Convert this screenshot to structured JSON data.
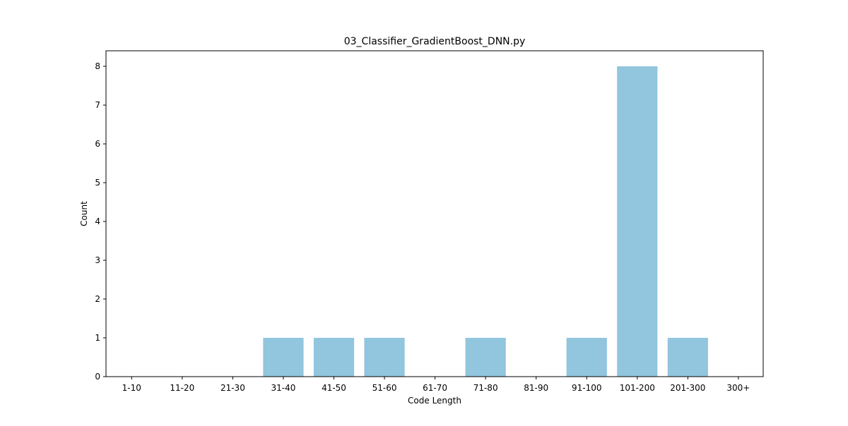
{
  "chart_data": {
    "type": "bar",
    "title": "03_Classifier_GradientBoost_DNN.py",
    "xlabel": "Code Length",
    "ylabel": "Count",
    "categories": [
      "1-10",
      "11-20",
      "21-30",
      "31-40",
      "41-50",
      "51-60",
      "61-70",
      "71-80",
      "81-90",
      "91-100",
      "101-200",
      "201-300",
      "300+"
    ],
    "values": [
      0,
      0,
      0,
      1,
      1,
      1,
      0,
      1,
      0,
      1,
      8,
      1,
      0
    ],
    "ylim": [
      0,
      8.4
    ],
    "yticks": [
      0,
      1,
      2,
      3,
      4,
      5,
      6,
      7,
      8
    ],
    "bar_color": "#92c5de",
    "grid": false,
    "legend": false
  }
}
